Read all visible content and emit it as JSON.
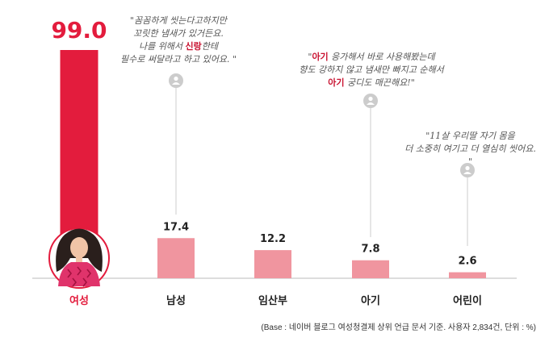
{
  "chart_data": {
    "type": "bar",
    "categories": [
      "여성",
      "남성",
      "임산부",
      "아기",
      "어린이"
    ],
    "values": [
      99.0,
      17.4,
      12.2,
      7.8,
      2.6
    ],
    "value_labels": [
      "99.0",
      "17.4",
      "12.2",
      "7.8",
      "2.6"
    ],
    "ylim": [
      0,
      100
    ],
    "colors": {
      "highlight": "#e31c3d",
      "bar": "#f0959f",
      "axis": "#bbbbbb",
      "pin": "#cccccc"
    },
    "annotations": [
      {
        "target": "남성",
        "lines": [
          [
            "\"꼼꼼하게 씻는다고하지만"
          ],
          [
            "꼬릿한 냄새가 있거든요."
          ],
          [
            "나를 위해서 ",
            {
              "em": "신랑"
            },
            "한테"
          ],
          [
            "필수로 써달라고 하고 있어요. \""
          ]
        ]
      },
      {
        "target": "아기",
        "lines": [
          [
            "\"",
            {
              "em": "아기"
            },
            " 응가해서 바로 사용해봤는데"
          ],
          [
            "향도 강하지 않고 냄새만 빠지고 순해서"
          ],
          [
            {
              "em": "아기"
            },
            " 궁디도 매끈해요!\""
          ]
        ]
      },
      {
        "target": "어린이",
        "lines": [
          [
            "\"11살 우리딸 자기 몸을"
          ],
          [
            "더 소중히 여기고 더 열심히 씻어요. \""
          ]
        ]
      }
    ]
  },
  "source": "(Base : 네이버 블로그 여성청결제 상위 언급 문서 기준. 사용자 2,834건, 단위 : %)"
}
